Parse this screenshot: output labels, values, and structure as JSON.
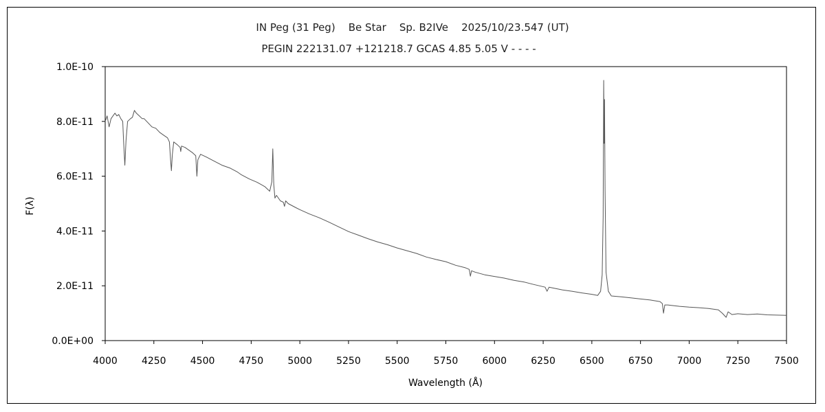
{
  "chart_data": {
    "type": "line",
    "title": "IN Peg (31 Peg)    Be Star    Sp. B2IVe    2025/10/23.547 (UT)",
    "subtitle": "PEGIN 222131.07 +121218.7 GCAS 4.85 5.05 V - - - -",
    "xlabel": "Wavelength (Å)",
    "ylabel": "F(λ)",
    "xlim": [
      4000,
      7500
    ],
    "ylim": [
      0,
      1e-10
    ],
    "grid": false,
    "x_ticks": [
      4000,
      4250,
      4500,
      4750,
      5000,
      5250,
      5500,
      5750,
      6000,
      6250,
      6500,
      6750,
      7000,
      7250,
      7500
    ],
    "x_tick_labels": [
      "4000",
      "4250",
      "4500",
      "4750",
      "5000",
      "5250",
      "5500",
      "5750",
      "6000",
      "6250",
      "6500",
      "6750",
      "7000",
      "7250",
      "7500"
    ],
    "y_ticks": [
      0,
      2e-11,
      4e-11,
      6e-11,
      8e-11,
      1e-10
    ],
    "y_tick_labels": [
      "0.0E+00",
      "2.0E-11",
      "4.0E-11",
      "6.0E-11",
      "8.0E-11",
      "1.0E-10"
    ],
    "series": [
      {
        "color": "#555555",
        "x": [
          4000,
          4010,
          4020,
          4030,
          4040,
          4050,
          4060,
          4070,
          4080,
          4090,
          4095,
          4101,
          4107,
          4115,
          4130,
          4140,
          4150,
          4160,
          4175,
          4190,
          4200,
          4220,
          4240,
          4260,
          4280,
          4300,
          4320,
          4330,
          4336,
          4340,
          4345,
          4352,
          4370,
          4385,
          4388,
          4392,
          4410,
          4430,
          4450,
          4465,
          4471,
          4476,
          4490,
          4520,
          4560,
          4600,
          4640,
          4680,
          4700,
          4740,
          4780,
          4820,
          4845,
          4856,
          4861,
          4866,
          4872,
          4880,
          4900,
          4915,
          4921,
          4927,
          4940,
          4980,
          5000,
          5050,
          5100,
          5150,
          5200,
          5250,
          5300,
          5350,
          5400,
          5450,
          5500,
          5550,
          5600,
          5650,
          5700,
          5750,
          5800,
          5850,
          5870,
          5876,
          5882,
          5900,
          5950,
          6000,
          6050,
          6100,
          6150,
          6200,
          6260,
          6270,
          6280,
          6300,
          6350,
          6400,
          6450,
          6500,
          6530,
          6545,
          6553,
          6558,
          6561,
          6563,
          6565,
          6568,
          6573,
          6585,
          6600,
          6650,
          6700,
          6750,
          6800,
          6850,
          6862,
          6868,
          6875,
          6890,
          6950,
          7000,
          7050,
          7100,
          7150,
          7170,
          7190,
          7200,
          7220,
          7250,
          7300,
          7350,
          7400,
          7450,
          7500
        ],
        "y": [
          8e-11,
          8.2e-11,
          7.8e-11,
          8.1e-11,
          8.2e-11,
          8.3e-11,
          8.2e-11,
          8.25e-11,
          8.1e-11,
          8e-11,
          7.2e-11,
          6.4e-11,
          7.3e-11,
          8e-11,
          8.1e-11,
          8.15e-11,
          8.4e-11,
          8.3e-11,
          8.2e-11,
          8.1e-11,
          8.1e-11,
          7.95e-11,
          7.8e-11,
          7.75e-11,
          7.6e-11,
          7.5e-11,
          7.4e-11,
          7.25e-11,
          6.6e-11,
          6.2e-11,
          6.8e-11,
          7.25e-11,
          7.15e-11,
          7.05e-11,
          6.9e-11,
          7.1e-11,
          7.05e-11,
          6.95e-11,
          6.85e-11,
          6.75e-11,
          6e-11,
          6.6e-11,
          6.8e-11,
          6.7e-11,
          6.55e-11,
          6.4e-11,
          6.3e-11,
          6.15e-11,
          6.05e-11,
          5.9e-11,
          5.78e-11,
          5.62e-11,
          5.45e-11,
          5.8e-11,
          7e-11,
          5.7e-11,
          5.2e-11,
          5.3e-11,
          5.1e-11,
          5.05e-11,
          4.9e-11,
          5.1e-11,
          5e-11,
          4.85e-11,
          4.78e-11,
          4.62e-11,
          4.48e-11,
          4.32e-11,
          4.15e-11,
          3.98e-11,
          3.85e-11,
          3.72e-11,
          3.6e-11,
          3.5e-11,
          3.38e-11,
          3.28e-11,
          3.18e-11,
          3.05e-11,
          2.96e-11,
          2.88e-11,
          2.75e-11,
          2.66e-11,
          2.6e-11,
          2.35e-11,
          2.55e-11,
          2.5e-11,
          2.4e-11,
          2.34e-11,
          2.28e-11,
          2.2e-11,
          2.14e-11,
          2.05e-11,
          1.95e-11,
          1.8e-11,
          1.95e-11,
          1.92e-11,
          1.85e-11,
          1.8e-11,
          1.74e-11,
          1.69e-11,
          1.65e-11,
          1.8e-11,
          2.4e-11,
          4.5e-11,
          9.5e-11,
          7.2e-11,
          8.8e-11,
          5.5e-11,
          2.5e-11,
          1.8e-11,
          1.63e-11,
          1.6e-11,
          1.56e-11,
          1.52e-11,
          1.48e-11,
          1.42e-11,
          1.35e-11,
          1e-11,
          1.3e-11,
          1.3e-11,
          1.25e-11,
          1.22e-11,
          1.2e-11,
          1.17e-11,
          1.12e-11,
          1e-11,
          8.5e-12,
          1.05e-11,
          9.5e-12,
          9.8e-12,
          9.5e-12,
          9.7e-12,
          9.4e-12,
          9.3e-12,
          9.2e-12
        ]
      }
    ]
  }
}
